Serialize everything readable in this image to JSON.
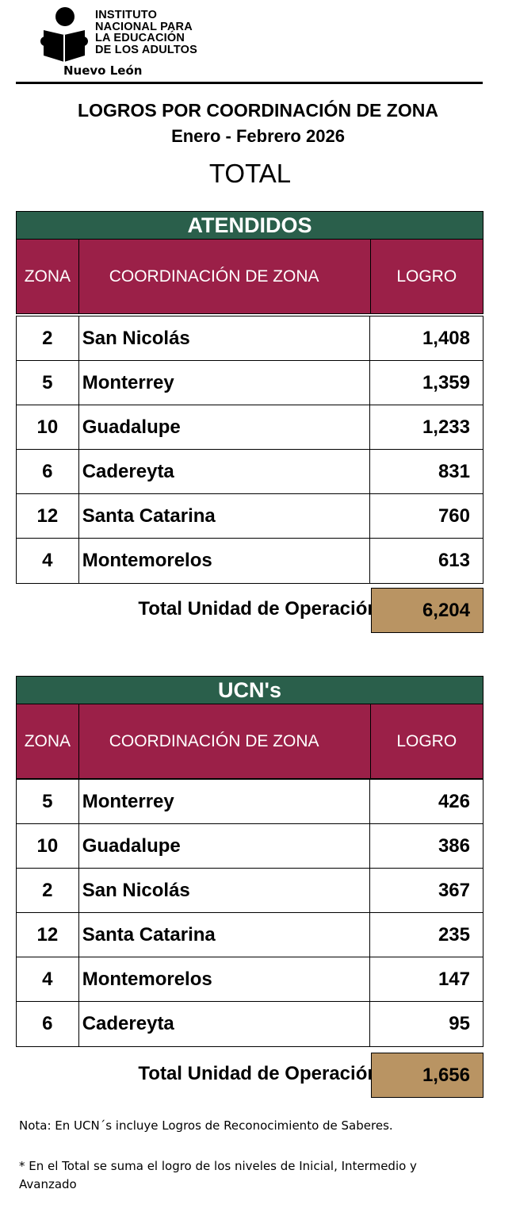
{
  "header": {
    "org_lines": [
      "INSTITUTO",
      "NACIONAL PARA",
      "LA EDUCACIÓN",
      "DE LOS ADULTOS"
    ],
    "state": "Nuevo León",
    "title": "LOGROS POR COORDINACIÓN DE ZONA",
    "period": "Enero - Febrero 2026",
    "subtitle": "TOTAL"
  },
  "columns": {
    "zona": "ZONA",
    "coord": "COORDINACIÓN DE ZONA",
    "logro": "LOGRO"
  },
  "atendidos": {
    "title": "ATENDIDOS",
    "rows": [
      {
        "zona": "2",
        "coord": "San Nicolás",
        "logro": "1,408"
      },
      {
        "zona": "5",
        "coord": "Monterrey",
        "logro": "1,359"
      },
      {
        "zona": "10",
        "coord": "Guadalupe",
        "logro": "1,233"
      },
      {
        "zona": "6",
        "coord": "Cadereyta",
        "logro": "831"
      },
      {
        "zona": "12",
        "coord": "Santa Catarina",
        "logro": "760"
      },
      {
        "zona": "4",
        "coord": "Montemorelos",
        "logro": "613"
      }
    ],
    "total_label": "Total Unidad de Operación:",
    "total": "6,204"
  },
  "ucns": {
    "title": "UCN's",
    "rows": [
      {
        "zona": "5",
        "coord": "Monterrey",
        "logro": "426"
      },
      {
        "zona": "10",
        "coord": "Guadalupe",
        "logro": "386"
      },
      {
        "zona": "2",
        "coord": "San Nicolás",
        "logro": "367"
      },
      {
        "zona": "12",
        "coord": "Santa Catarina",
        "logro": "235"
      },
      {
        "zona": "4",
        "coord": "Montemorelos",
        "logro": "147"
      },
      {
        "zona": "6",
        "coord": "Cadereyta",
        "logro": "95"
      }
    ],
    "total_label": "Total Unidad de Operación:",
    "total": "1,656"
  },
  "notes": {
    "note1": "Nota: En UCN´s incluye Logros de Reconocimiento de Saberes.",
    "note2_line1": "* En el Total se suma el logro de los niveles de Inicial, Intermedio y",
    "note2_line2": "Avanzado"
  },
  "colors": {
    "section_header": "#2a5f4b",
    "column_header": "#9b2048",
    "total_box": "#b99463"
  }
}
